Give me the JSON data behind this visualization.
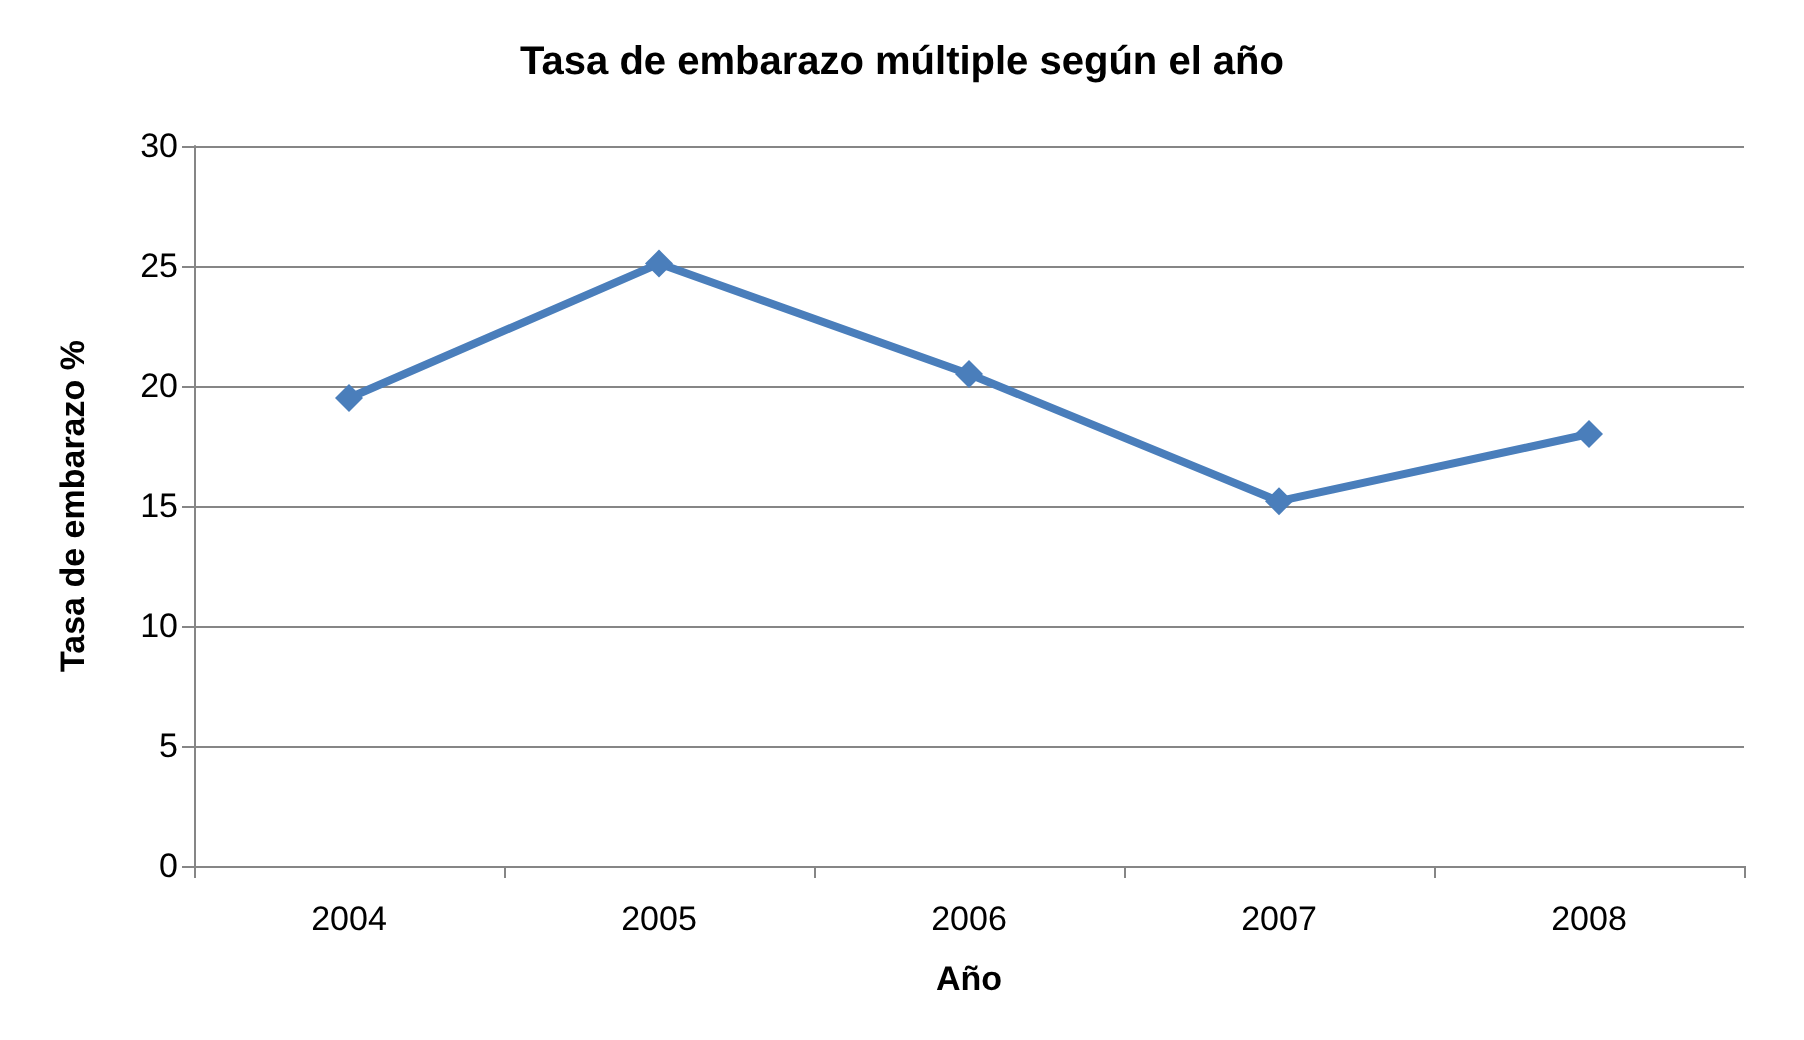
{
  "chart_data": {
    "type": "line",
    "title": "Tasa de embarazo múltiple según el año",
    "xlabel": "Año",
    "ylabel": "Tasa de embarazo %",
    "categories": [
      "2004",
      "2005",
      "2006",
      "2007",
      "2008"
    ],
    "series": [
      {
        "color": "#4a7ebb",
        "values": [
          19.5,
          25.1,
          20.5,
          15.2,
          18
        ]
      }
    ],
    "ylim": [
      0,
      30
    ],
    "yticks": [
      0,
      5,
      10,
      15,
      20,
      25,
      30
    ],
    "grid": "y",
    "marker": "diamond",
    "line_style": "solid"
  }
}
